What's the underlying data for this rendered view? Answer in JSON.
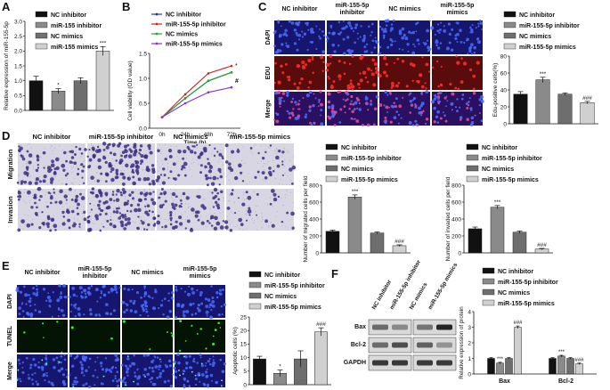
{
  "panel_letters": [
    "A",
    "B",
    "C",
    "D",
    "E",
    "F"
  ],
  "colors": {
    "nc_inhibitor": "#111111",
    "mir_inhibitor": "#8a8a8a",
    "nc_mimics": "#6e6e6e",
    "mir_mimics": "#d0d0d0",
    "line_nc_inhibitor": "#1f2fbf",
    "line_mir_inhibitor": "#d42020",
    "line_nc_mimics": "#26a426",
    "line_mir_mimics": "#8a2fd0",
    "dapi_bg": "#16166e",
    "edu_bg": "#5a0c0c",
    "tunel_bg": "#041404",
    "transwell_bg": "#d8d6e2",
    "transwell_cell": "#3b2f82"
  },
  "panel_a": {
    "legend": [
      "NC inhibitor",
      "miR-155 inhibitor",
      "NC mimics",
      "miR-155 mimics"
    ],
    "chart_data": {
      "type": "bar",
      "ylabel": "Relative expression of miR-155-5p",
      "ylim": [
        0,
        3.0
      ],
      "yticks": [
        "0.0",
        "0.5",
        "1.0",
        "1.5",
        "2.0",
        "2.5",
        "3.0"
      ],
      "values": [
        1.0,
        0.65,
        1.0,
        2.0
      ],
      "errors": [
        0.15,
        0.08,
        0.1,
        0.15
      ],
      "annotations": [
        "",
        "*",
        "",
        "***"
      ]
    }
  },
  "panel_b": {
    "legend": [
      "NC inhibitor",
      "miR-155-5p inhibitor",
      "NC mimics",
      "miR-155-5p mimics"
    ],
    "chart_data": {
      "type": "line",
      "xlabel": "Time (h)",
      "ylabel": "Cell viability (OD value)",
      "categories": [
        "0h",
        "24h",
        "48h",
        "72h"
      ],
      "ylim": [
        0.0,
        1.5
      ],
      "yticks": [
        "0.0",
        "0.5",
        "1.0",
        "1.5"
      ],
      "series": [
        {
          "name": "NC inhibitor",
          "values": [
            0.22,
            0.6,
            0.95,
            1.12
          ]
        },
        {
          "name": "miR-155-5p inhibitor",
          "values": [
            0.22,
            0.68,
            1.1,
            1.25
          ]
        },
        {
          "name": "NC mimics",
          "values": [
            0.22,
            0.6,
            0.95,
            1.12
          ]
        },
        {
          "name": "miR-155-5p mimics",
          "values": [
            0.22,
            0.5,
            0.72,
            0.82
          ]
        }
      ],
      "end_annotations": [
        "*",
        "#"
      ]
    }
  },
  "panel_c": {
    "columns": [
      "NC inhibitor",
      "miR-155-5p\ninhibitor",
      "NC mimics",
      "miR-155-5p\nmimics"
    ],
    "rows": [
      "DAPI",
      "EDU",
      "Merge"
    ],
    "legend": [
      "NC inhibitor",
      "miR-155-5p inhibitor",
      "NC mimics",
      "miR-155-5p mimics"
    ],
    "chart_data": {
      "type": "bar",
      "ylabel": "Edu-positive cells(%)",
      "ylim": [
        0,
        80
      ],
      "yticks": [
        "0",
        "20",
        "40",
        "60",
        "80"
      ],
      "values": [
        35,
        52,
        35,
        25
      ],
      "errors": [
        3,
        3,
        1.5,
        1.5
      ],
      "annotations": [
        "",
        "***",
        "",
        "###"
      ]
    }
  },
  "panel_d": {
    "columns": [
      "NC inhibitor",
      "miR-155-5p inhibitor",
      "NC mimics",
      "miR-155-5p mimics"
    ],
    "rows": [
      "Migration",
      "Invasion"
    ],
    "legend": [
      "NC inhibitor",
      "miR-155-5p inhibitor",
      "NC mimics",
      "miR-155-5p mimics"
    ],
    "chart_data": [
      {
        "type": "bar",
        "ylabel": "Number of migrated cells per field",
        "ylim": [
          0,
          800
        ],
        "yticks": [
          "0",
          "200",
          "400",
          "600",
          "800"
        ],
        "values": [
          255,
          660,
          235,
          85
        ],
        "errors": [
          15,
          25,
          12,
          10
        ],
        "annotations": [
          "",
          "***",
          "",
          "###"
        ]
      },
      {
        "type": "bar",
        "ylabel": "Number of invaded cells per field",
        "ylim": [
          0,
          800
        ],
        "yticks": [
          "0",
          "200",
          "400",
          "600",
          "800"
        ],
        "values": [
          285,
          540,
          245,
          45
        ],
        "errors": [
          20,
          20,
          15,
          8
        ],
        "annotations": [
          "",
          "***",
          "",
          "###"
        ]
      }
    ]
  },
  "panel_e": {
    "columns": [
      "NC inhibitor",
      "miR-155-5p\ninhibitor",
      "NC mimics",
      "miR-155-5p\nmimics"
    ],
    "rows": [
      "DAPI",
      "TUNEL",
      "Merge"
    ],
    "legend": [
      "NC inhibitor",
      "miR-155-5p inhibitor",
      "NC mimics",
      "miR-155-5p mimics"
    ],
    "chart_data": {
      "type": "bar",
      "ylabel": "Apoptotic cells (%)",
      "ylim": [
        0,
        25
      ],
      "yticks": [
        "0",
        "5",
        "10",
        "15",
        "20",
        "25"
      ],
      "values": [
        9.5,
        4.2,
        9.5,
        19.5
      ],
      "errors": [
        1.0,
        1.2,
        3.0,
        1.5
      ],
      "annotations": [
        "",
        "*",
        "",
        "###"
      ]
    }
  },
  "panel_f": {
    "lane_labels": [
      "NC inhibitor",
      "miR-155-5p inhibitor",
      "NC mimics",
      "miR-155-5p mimics"
    ],
    "blot_rows": [
      "Bax",
      "Bcl-2",
      "GAPDH"
    ],
    "legend": [
      "NC inhibitor",
      "miR-155-5p inhibitor",
      "NC mimics",
      "miR-155-5p mimics"
    ],
    "chart_data": {
      "type": "bar",
      "ylabel": "Relative expression of protein",
      "categories": [
        "Bax",
        "Bcl-2"
      ],
      "ylim": [
        0,
        4
      ],
      "yticks": [
        "0",
        "1",
        "2",
        "3",
        "4"
      ],
      "series": [
        {
          "name": "NC inhibitor",
          "values": [
            1.0,
            1.0
          ],
          "errors": [
            0.05,
            0.05
          ]
        },
        {
          "name": "miR-155-5p inhibitor",
          "values": [
            0.7,
            1.15
          ],
          "errors": [
            0.05,
            0.05
          ]
        },
        {
          "name": "NC mimics",
          "values": [
            1.0,
            1.0
          ],
          "errors": [
            0.05,
            0.05
          ]
        },
        {
          "name": "miR-155-5p mimics",
          "values": [
            3.0,
            0.65
          ],
          "errors": [
            0.08,
            0.05
          ]
        }
      ],
      "annotations": [
        [
          "",
          "***",
          "",
          "###"
        ],
        [
          "",
          "***",
          "",
          "###"
        ]
      ]
    }
  }
}
